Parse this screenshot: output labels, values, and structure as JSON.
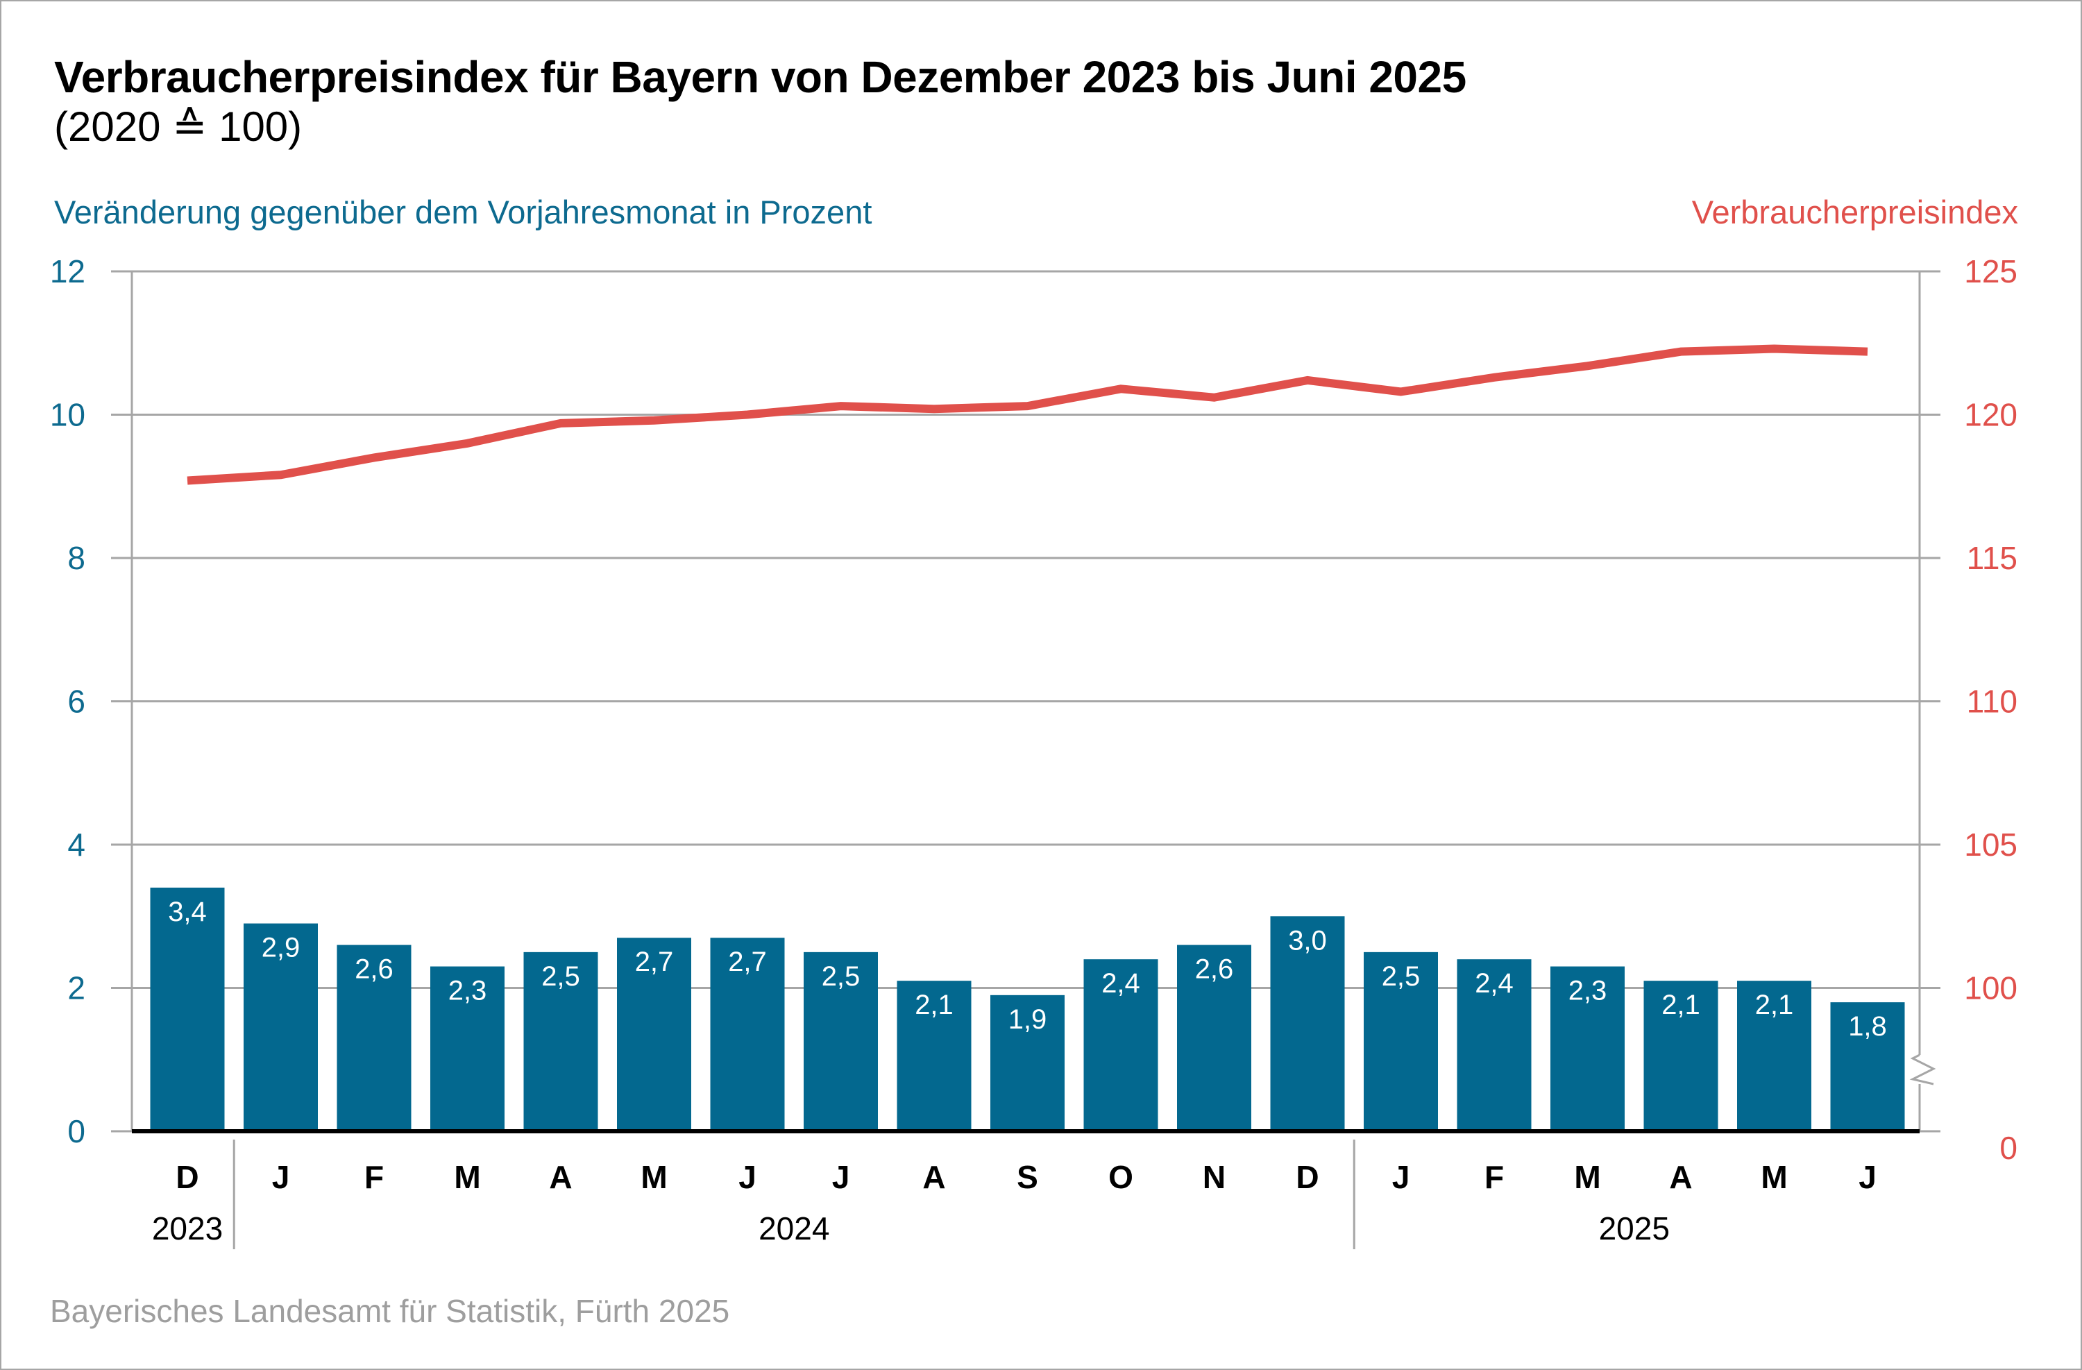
{
  "title": "Verbraucherpreisindex für Bayern von Dezember 2023 bis Juni 2025",
  "subtitle": "(2020 ≙ 100)",
  "source": "Bayerisches Landesamt für Statistik, Fürth 2025",
  "colors": {
    "bars": "#03688f",
    "line": "#e0504b",
    "left_axis_text": "#0d6a8f",
    "right_axis_text": "#e0504b",
    "grid": "#a6a6a6",
    "source_text": "#9e9e9e"
  },
  "chart_data": {
    "type": "bar+line",
    "title": "Verbraucherpreisindex für Bayern von Dezember 2023 bis Juni 2025",
    "subtitle": "(2020 ≙ 100)",
    "categories": [
      "D",
      "J",
      "F",
      "M",
      "A",
      "M",
      "J",
      "J",
      "A",
      "S",
      "O",
      "N",
      "D",
      "J",
      "F",
      "M",
      "A",
      "M",
      "J"
    ],
    "year_groups": [
      {
        "label": "2023",
        "start": 0,
        "end": 0
      },
      {
        "label": "2024",
        "start": 1,
        "end": 12
      },
      {
        "label": "2025",
        "start": 13,
        "end": 18
      }
    ],
    "series": [
      {
        "name": "Veränderung gegenüber dem Vorjahresmonat in Prozent",
        "type": "bar",
        "axis": "left",
        "values": [
          3.4,
          2.9,
          2.6,
          2.3,
          2.5,
          2.7,
          2.7,
          2.5,
          2.1,
          1.9,
          2.4,
          2.6,
          3.0,
          2.5,
          2.4,
          2.3,
          2.1,
          2.1,
          1.8
        ],
        "labels": [
          "3,4",
          "2,9",
          "2,6",
          "2,3",
          "2,5",
          "2,7",
          "2,7",
          "2,5",
          "2,1",
          "1,9",
          "2,4",
          "2,6",
          "3,0",
          "2,5",
          "2,4",
          "2,3",
          "2,1",
          "2,1",
          "1,8"
        ]
      },
      {
        "name": "Verbraucherpreisindex",
        "type": "line",
        "axis": "right",
        "values": [
          117.7,
          117.9,
          118.5,
          119.0,
          119.7,
          119.8,
          120.0,
          120.3,
          120.2,
          120.3,
          120.9,
          120.6,
          121.2,
          120.8,
          121.3,
          121.7,
          122.2,
          122.3,
          122.2
        ]
      }
    ],
    "left_axis": {
      "label": "Veränderung gegenüber dem Vorjahresmonat in Prozent",
      "range": [
        0,
        12
      ],
      "ticks": [
        "0",
        "2",
        "4",
        "6",
        "8",
        "10",
        "12"
      ]
    },
    "right_axis": {
      "label": "Verbraucherpreisindex",
      "range": [
        95,
        125
      ],
      "axis_break": true,
      "ticks": [
        "0",
        "100",
        "105",
        "110",
        "115",
        "120",
        "125"
      ]
    },
    "grid": true
  }
}
